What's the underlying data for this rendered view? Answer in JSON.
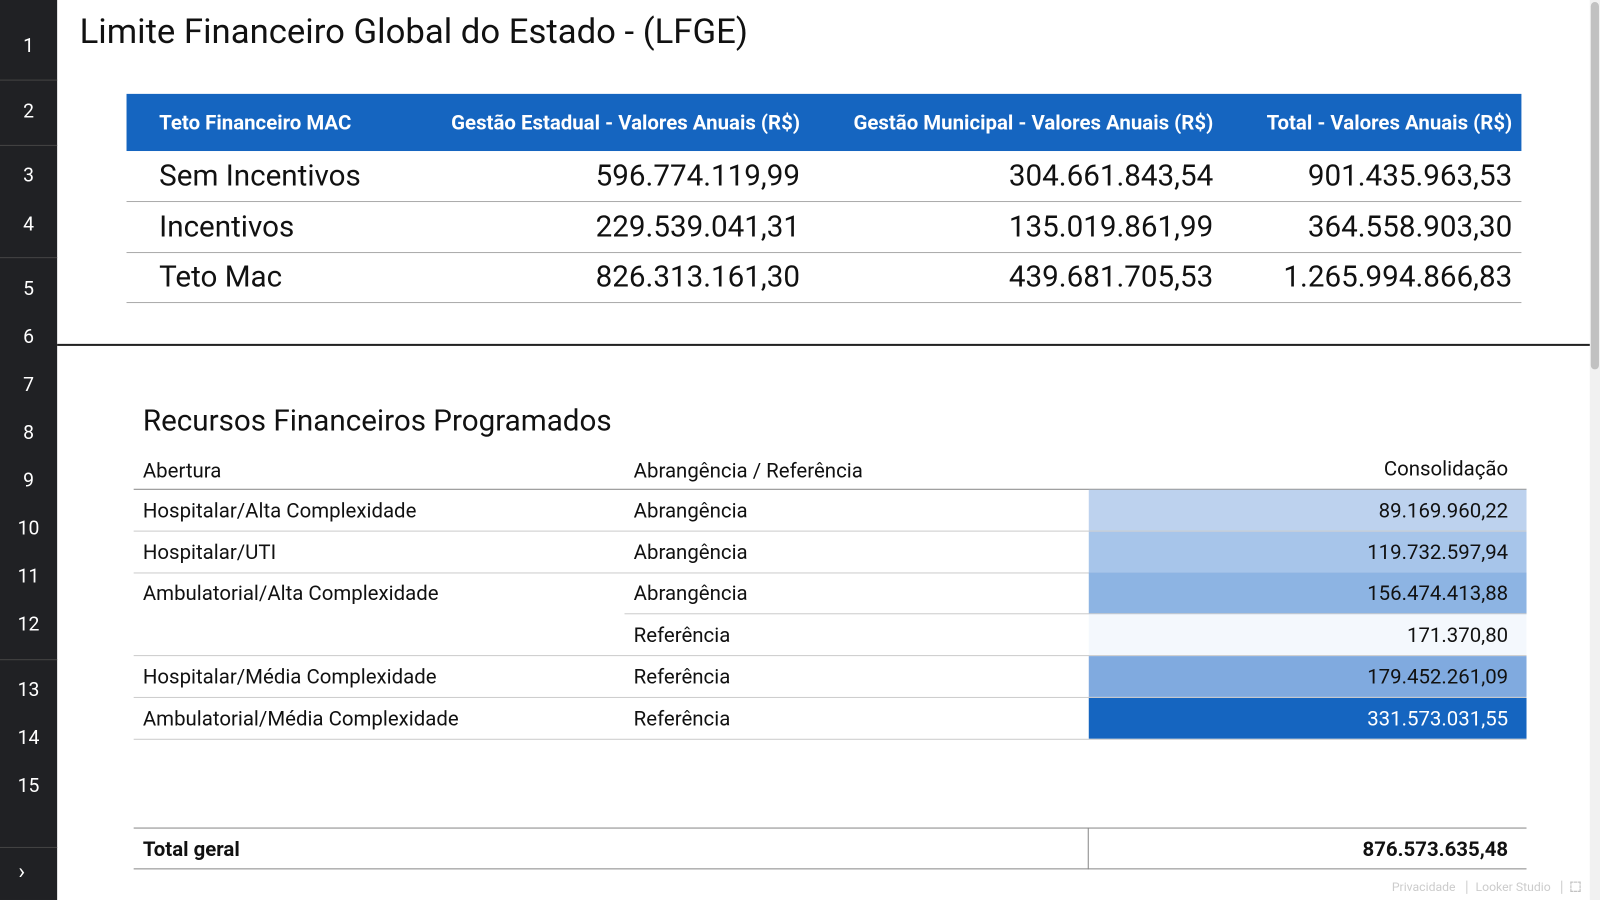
{
  "sidebar": {
    "pages": [
      "1",
      "2",
      "3",
      "4",
      "5",
      "6",
      "7",
      "8",
      "9",
      "10",
      "11",
      "12",
      "13",
      "14",
      "15"
    ]
  },
  "header": {
    "title": "Limite Financeiro Global do Estado - (LFGE)"
  },
  "table1": {
    "columns": [
      "Teto Financeiro MAC",
      "Gestão Estadual - Valores Anuais (R$)",
      "Gestão Municipal - Valores Anuais (R$)",
      "Total - Valores Anuais (R$)"
    ],
    "rows": [
      [
        "Sem Incentivos",
        "596.774.119,99",
        "304.661.843,54",
        "901.435.963,53"
      ],
      [
        "Incentivos",
        "229.539.041,31",
        "135.019.861,99",
        "364.558.903,30"
      ],
      [
        "Teto Mac",
        "826.313.161,30",
        "439.681.705,53",
        "1.265.994.866,83"
      ]
    ]
  },
  "table2": {
    "title": "Recursos Financeiros Programados",
    "columns": [
      "Abertura",
      "Abrangência / Referência",
      "Consolidação"
    ],
    "rows": [
      {
        "abertura": "Hospitalar/Alta Complexidade",
        "abrangencia": "Abrangência",
        "consolidacao": "89.169.960,22",
        "color": "#bdd2ee"
      },
      {
        "abertura": "Hospitalar/UTI",
        "abrangencia": "Abrangência",
        "consolidacao": "119.732.597,94",
        "color": "#a7c5ea"
      },
      {
        "abertura": "Ambulatorial/Alta Complexidade",
        "abrangencia": "Abrangência",
        "consolidacao": "156.474.413,88",
        "color": "#8db4e3"
      },
      {
        "abertura": null,
        "abrangencia": "Referência",
        "consolidacao": "171.370,80",
        "color": "#f4f8fd"
      },
      {
        "abertura": "Hospitalar/Média Complexidade",
        "abrangencia": "Referência",
        "consolidacao": "179.452.261,09",
        "color": "#80aadf"
      },
      {
        "abertura": "Ambulatorial/Média Complexidade",
        "abrangencia": "Referência",
        "consolidacao": "331.573.031,55",
        "color": "#1565c0"
      }
    ],
    "total": {
      "label": "Total geral",
      "value": "876.573.635,48"
    }
  },
  "footer": {
    "links": [
      "Privacidade",
      "Looker Studio"
    ]
  }
}
